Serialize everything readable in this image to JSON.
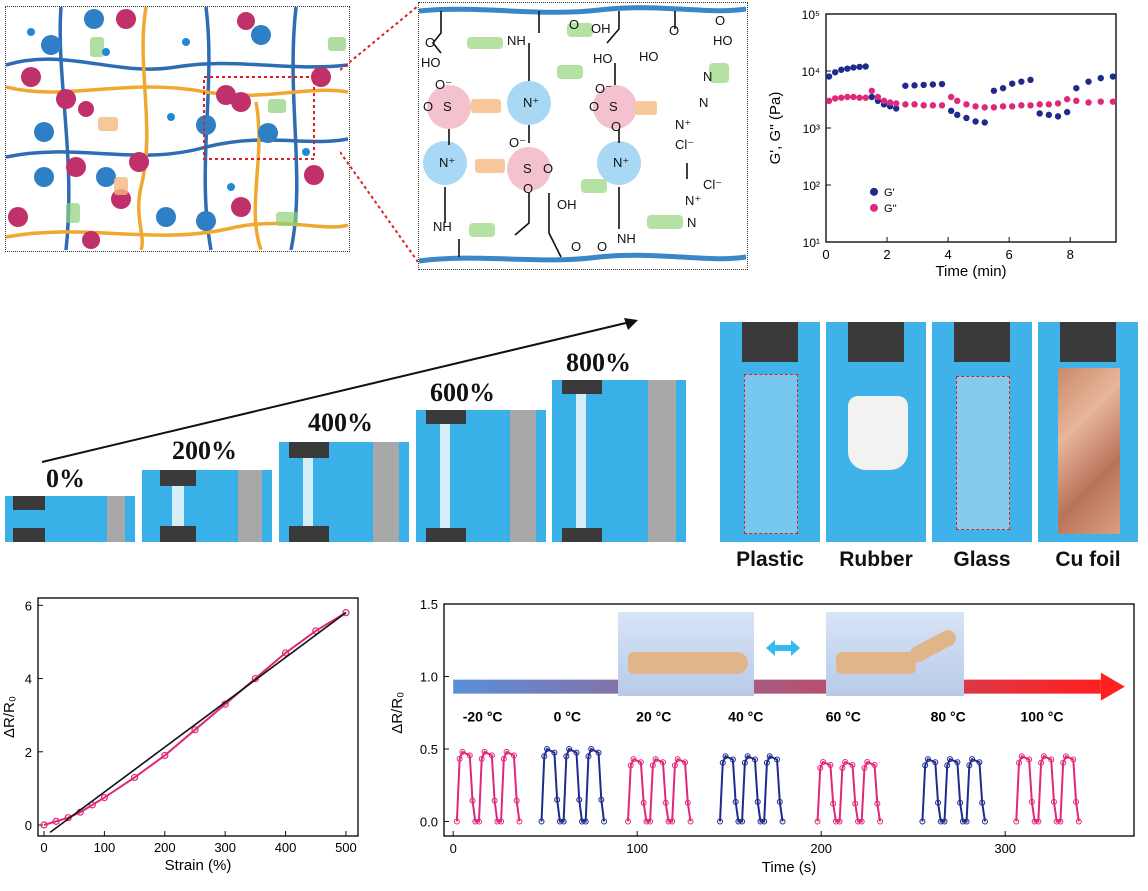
{
  "network": {
    "colors": {
      "chain_blue": "#2e6db4",
      "chain_orange": "#f0a830",
      "anion": "#c0306b",
      "cation": "#2f7fc7",
      "hbond": "#8fd17a",
      "ionic": "#f4b980"
    }
  },
  "chemistry": {
    "labels": [
      "HO",
      "NH",
      "O",
      "OH",
      "O",
      "HO",
      "O",
      "O⁻",
      "S",
      "O",
      "N⁺",
      "N⁺",
      "O⁻",
      "S",
      "O",
      "O",
      "N",
      "Cl⁻",
      "N⁺",
      "O⁻",
      "S",
      "O",
      "O",
      "N⁺",
      "NH",
      "OH",
      "O",
      "NH",
      "O",
      "N",
      "Cl⁻",
      "N⁺",
      "HO",
      "O",
      "HO",
      "N"
    ]
  },
  "rheology": {
    "chart_data": {
      "type": "scatter",
      "xlabel": "Time (min)",
      "ylabel": "G', G'' (Pa)",
      "xlim": [
        0,
        9.5
      ],
      "ylim_log10": [
        1,
        5
      ],
      "yscale": "log",
      "xticks": [
        "0",
        "2",
        "4",
        "6",
        "8"
      ],
      "yticks": [
        "10¹",
        "10²",
        "10³",
        "10⁴",
        "10⁵"
      ],
      "legend_position": "left",
      "series": [
        {
          "name": "G'",
          "color": "#1f2b8c",
          "x": [
            0.1,
            0.3,
            0.5,
            0.7,
            0.9,
            1.1,
            1.3,
            1.5,
            1.7,
            1.9,
            2.1,
            2.3,
            2.6,
            2.9,
            3.2,
            3.5,
            3.8,
            4.1,
            4.3,
            4.6,
            4.9,
            5.2,
            5.5,
            5.8,
            6.1,
            6.4,
            6.7,
            7.0,
            7.3,
            7.6,
            7.9,
            8.2,
            8.6,
            9.0,
            9.4
          ],
          "y": [
            8000,
            9500,
            10500,
            11000,
            11500,
            11800,
            12000,
            3500,
            3000,
            2600,
            2400,
            2200,
            5500,
            5600,
            5700,
            5800,
            5900,
            2000,
            1700,
            1500,
            1300,
            1250,
            4500,
            5000,
            6000,
            6500,
            7000,
            1800,
            1700,
            1600,
            1900,
            5000,
            6500,
            7500,
            8000
          ]
        },
        {
          "name": "G''",
          "color": "#e0287a",
          "x": [
            0.1,
            0.3,
            0.5,
            0.7,
            0.9,
            1.1,
            1.3,
            1.5,
            1.7,
            1.9,
            2.1,
            2.3,
            2.6,
            2.9,
            3.2,
            3.5,
            3.8,
            4.1,
            4.3,
            4.6,
            4.9,
            5.2,
            5.5,
            5.8,
            6.1,
            6.4,
            6.7,
            7.0,
            7.3,
            7.6,
            7.9,
            8.2,
            8.6,
            9.0,
            9.4
          ],
          "y": [
            3000,
            3300,
            3400,
            3500,
            3500,
            3400,
            3400,
            4500,
            3500,
            3000,
            2800,
            2700,
            2600,
            2600,
            2500,
            2500,
            2500,
            3500,
            3000,
            2600,
            2400,
            2300,
            2300,
            2400,
            2400,
            2500,
            2500,
            2600,
            2600,
            2700,
            3200,
            3000,
            2800,
            2900,
            2900
          ]
        }
      ]
    }
  },
  "stretch": {
    "labels": [
      "0%",
      "200%",
      "400%",
      "600%",
      "800%"
    ]
  },
  "adhesion": {
    "labels": [
      "Plastic",
      "Rubber",
      "Glass",
      "Cu foil"
    ]
  },
  "resistance_strain": {
    "chart_data": {
      "type": "line",
      "xlabel": "Strain (%)",
      "ylabel": "ΔR/R₀",
      "xlim": [
        -10,
        520
      ],
      "ylim": [
        -0.3,
        6.2
      ],
      "xticks": [
        0,
        100,
        200,
        300,
        400,
        500
      ],
      "yticks": [
        0,
        2,
        4,
        6
      ],
      "series": [
        {
          "name": "",
          "color": "#e0287a",
          "x": [
            0,
            20,
            40,
            60,
            80,
            100,
            150,
            200,
            250,
            300,
            350,
            400,
            450,
            500
          ],
          "y": [
            0.0,
            0.1,
            0.2,
            0.35,
            0.55,
            0.75,
            1.3,
            1.9,
            2.6,
            3.3,
            4.0,
            4.7,
            5.3,
            5.8
          ]
        },
        {
          "name": "",
          "color": "#111111",
          "x": [
            10,
            500
          ],
          "y": [
            -0.2,
            5.8
          ]
        }
      ]
    }
  },
  "temperature_cycling": {
    "chart_data": {
      "type": "line",
      "xlabel": "Time (s)",
      "ylabel": "ΔR/R₀",
      "xlim": [
        -5,
        370
      ],
      "ylim": [
        -0.1,
        1.5
      ],
      "xticks": [
        0,
        100,
        200,
        300
      ],
      "yticks": [
        "0.0",
        "0.5",
        "1.0",
        "1.5"
      ],
      "temperatures": [
        "-20 °C",
        "0 °C",
        "20 °C",
        "40 °C",
        "60 °C",
        "80 °C",
        "100 °C"
      ],
      "segment_starts": [
        2,
        48,
        95,
        145,
        198,
        255,
        306
      ],
      "segment_colors": [
        "#e0287a",
        "#1f2b8c",
        "#e0287a",
        "#1f2b8c",
        "#e0287a",
        "#1f2b8c",
        "#e0287a"
      ],
      "peak_values": [
        0.48,
        0.5,
        0.43,
        0.45,
        0.41,
        0.43,
        0.45
      ]
    }
  }
}
